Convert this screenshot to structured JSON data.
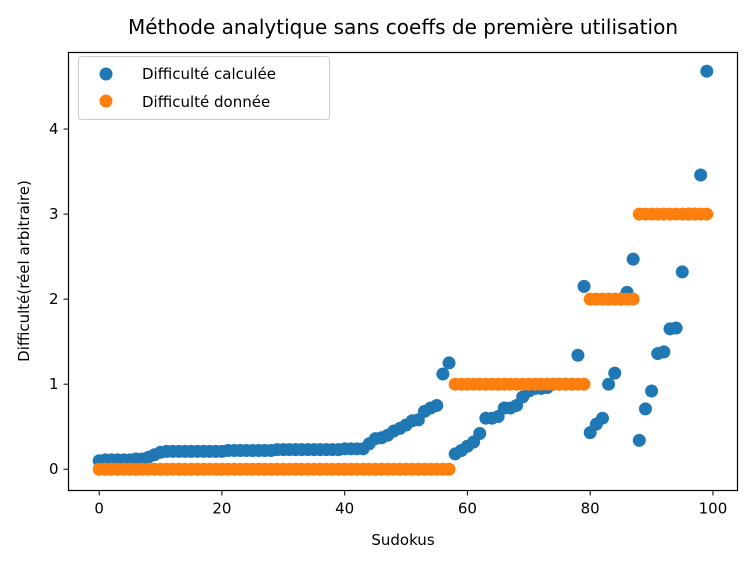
{
  "chart_data": {
    "type": "scatter",
    "title": "Méthode analytique sans coeffs de première utilisation",
    "xlabel": "Sudokus",
    "ylabel": "Difficulté(réel arbitraire)",
    "xlim": [
      -5,
      104
    ],
    "ylim": [
      -0.25,
      4.9
    ],
    "xticks": [
      "0",
      "20",
      "40",
      "60",
      "80",
      "100"
    ],
    "yticks": [
      "0",
      "1",
      "2",
      "3",
      "4"
    ],
    "grid": false,
    "legend_position": "top-left",
    "series": [
      {
        "name": "Difficulté calculée",
        "color": "#1f77b4",
        "x": [
          0,
          1,
          2,
          3,
          4,
          5,
          6,
          7,
          8,
          9,
          10,
          11,
          12,
          13,
          14,
          15,
          16,
          17,
          18,
          19,
          20,
          21,
          22,
          23,
          24,
          25,
          26,
          27,
          28,
          29,
          30,
          31,
          32,
          33,
          34,
          35,
          36,
          37,
          38,
          39,
          40,
          41,
          42,
          43,
          44,
          45,
          46,
          47,
          48,
          49,
          50,
          51,
          52,
          53,
          54,
          55,
          56,
          57,
          58,
          59,
          60,
          61,
          62,
          63,
          64,
          65,
          66,
          67,
          68,
          69,
          70,
          71,
          72,
          73,
          74,
          75,
          76,
          77,
          78,
          79,
          80,
          81,
          82,
          83,
          84,
          85,
          86,
          87,
          88,
          89,
          90,
          91,
          92,
          93,
          94,
          95,
          96,
          97,
          98,
          99
        ],
        "y": [
          0.1,
          0.11,
          0.11,
          0.11,
          0.11,
          0.11,
          0.12,
          0.12,
          0.14,
          0.17,
          0.2,
          0.21,
          0.21,
          0.21,
          0.21,
          0.21,
          0.21,
          0.21,
          0.21,
          0.21,
          0.21,
          0.22,
          0.22,
          0.22,
          0.22,
          0.22,
          0.22,
          0.22,
          0.22,
          0.23,
          0.23,
          0.23,
          0.23,
          0.23,
          0.23,
          0.23,
          0.23,
          0.23,
          0.23,
          0.23,
          0.24,
          0.24,
          0.24,
          0.24,
          0.3,
          0.36,
          0.37,
          0.4,
          0.45,
          0.48,
          0.52,
          0.57,
          0.58,
          0.68,
          0.72,
          0.75,
          1.12,
          1.25,
          0.18,
          0.22,
          0.27,
          0.32,
          0.42,
          0.6,
          0.6,
          0.62,
          0.72,
          0.72,
          0.75,
          0.85,
          0.92,
          0.95,
          0.95,
          0.96,
          1.0,
          1.0,
          1.0,
          1.0,
          1.34,
          2.15,
          0.43,
          0.53,
          0.6,
          1.0,
          1.13,
          2.0,
          2.08,
          2.47,
          0.34,
          0.71,
          0.92,
          1.36,
          1.38,
          1.65,
          1.66,
          2.32,
          3.0,
          3.0,
          3.46,
          4.68
        ]
      },
      {
        "name": "Difficulté donnée",
        "color": "#ff7f0e",
        "x": [
          0,
          1,
          2,
          3,
          4,
          5,
          6,
          7,
          8,
          9,
          10,
          11,
          12,
          13,
          14,
          15,
          16,
          17,
          18,
          19,
          20,
          21,
          22,
          23,
          24,
          25,
          26,
          27,
          28,
          29,
          30,
          31,
          32,
          33,
          34,
          35,
          36,
          37,
          38,
          39,
          40,
          41,
          42,
          43,
          44,
          45,
          46,
          47,
          48,
          49,
          50,
          51,
          52,
          53,
          54,
          55,
          56,
          57,
          58,
          59,
          60,
          61,
          62,
          63,
          64,
          65,
          66,
          67,
          68,
          69,
          70,
          71,
          72,
          73,
          74,
          75,
          76,
          77,
          78,
          79,
          80,
          81,
          82,
          83,
          84,
          85,
          86,
          87,
          88,
          89,
          90,
          91,
          92,
          93,
          94,
          95,
          96,
          97,
          98,
          99
        ],
        "y": [
          0,
          0,
          0,
          0,
          0,
          0,
          0,
          0,
          0,
          0,
          0,
          0,
          0,
          0,
          0,
          0,
          0,
          0,
          0,
          0,
          0,
          0,
          0,
          0,
          0,
          0,
          0,
          0,
          0,
          0,
          0,
          0,
          0,
          0,
          0,
          0,
          0,
          0,
          0,
          0,
          0,
          0,
          0,
          0,
          0,
          0,
          0,
          0,
          0,
          0,
          0,
          0,
          0,
          0,
          0,
          0,
          0,
          0,
          1,
          1,
          1,
          1,
          1,
          1,
          1,
          1,
          1,
          1,
          1,
          1,
          1,
          1,
          1,
          1,
          1,
          1,
          1,
          1,
          1,
          1,
          2,
          2,
          2,
          2,
          2,
          2,
          2,
          2,
          3,
          3,
          3,
          3,
          3,
          3,
          3,
          3,
          3,
          3,
          3,
          3
        ]
      }
    ]
  }
}
